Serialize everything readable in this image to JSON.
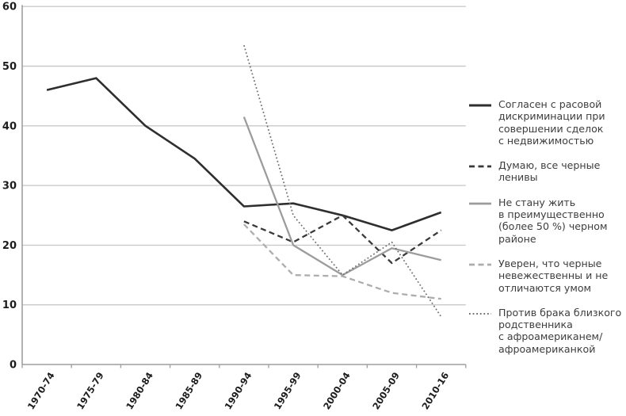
{
  "page": {
    "background": "#ffffff",
    "description_colors": {
      "grid": "#c9c9c9",
      "axis": "#9e9e9e",
      "tick_labels": "#1c1c1c",
      "legend_text": "#3d3d3d"
    }
  },
  "chart_data": {
    "type": "line",
    "title": "",
    "xlabel": "",
    "ylabel": "",
    "ylim": [
      0,
      60
    ],
    "yticks": [
      0,
      10,
      20,
      30,
      40,
      50,
      60
    ],
    "grid": "horizontal",
    "legend_position": "right",
    "categories": [
      "1970-74",
      "1975-79",
      "1980-84",
      "1985-89",
      "1990-94",
      "1995-99",
      "2000-04",
      "2005-09",
      "2010-16"
    ],
    "series": [
      {
        "name": "Согласен с расовой дискриминации при совершении сделок с недвижимостью",
        "legend_label": "Согласен с расовой\nдискриминации при\nсовершении сделок\nс недвижимостью",
        "style": "solid-dark",
        "color": "#2e2e2e",
        "stroke_width": 2.6,
        "dash": "",
        "values": [
          46,
          48,
          40,
          34.5,
          26.5,
          27,
          25,
          22.5,
          25.5
        ]
      },
      {
        "name": "Думаю, все черные ленивы",
        "legend_label": "Думаю, все черные\nленивы",
        "style": "dashed-dark",
        "color": "#3a3a3a",
        "stroke_width": 2.3,
        "dash": "7 4.5",
        "values": [
          null,
          null,
          null,
          null,
          24,
          20.5,
          25,
          17,
          22.5
        ]
      },
      {
        "name": "Не стану жить в преимущественно (более 50 %) черном районе",
        "legend_label": "Не стану жить\nв преимущественно\n(более 50 %) черном\nрайоне",
        "style": "solid-gray",
        "color": "#9c9c9c",
        "stroke_width": 2.3,
        "dash": "",
        "values": [
          null,
          null,
          null,
          null,
          41.5,
          20,
          15,
          19.5,
          17.5
        ]
      },
      {
        "name": "Уверен, что черные невежественны и не отличаются умом",
        "legend_label": "Уверен, что черные\nневежественны и не\nотличаются умом",
        "style": "dashed-gray",
        "color": "#adadad",
        "stroke_width": 2.3,
        "dash": "7 4.5",
        "values": [
          null,
          null,
          null,
          null,
          23.5,
          15,
          14.8,
          12,
          11
        ]
      },
      {
        "name": "Против брака близкого родственника с афроамериканем/афроамериканкой",
        "legend_label": "Против брака близкого\nродственника\nс афроамериканем/\nафроамериканкой",
        "style": "dotted-dark",
        "color": "#6f6f6f",
        "stroke_width": 1.7,
        "dash": "1.8 2.8",
        "values": [
          null,
          null,
          null,
          null,
          53.5,
          25,
          15,
          20.5,
          8
        ]
      }
    ]
  }
}
